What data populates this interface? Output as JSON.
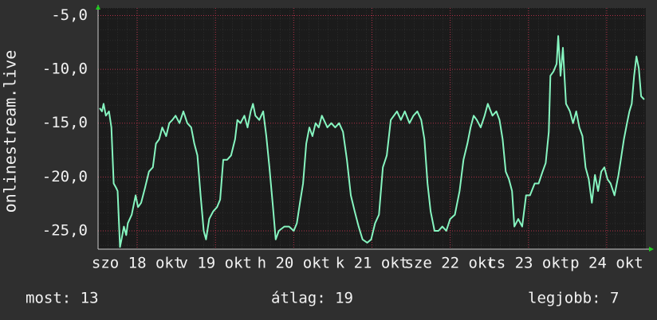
{
  "chart_data": {
    "type": "line",
    "ylabel": "onlinestream.live",
    "xlim": [
      0,
      7
    ],
    "xticks": [
      {
        "value": 0.5,
        "label": "szo 18 okt"
      },
      {
        "value": 1.5,
        "label": "v 19 okt"
      },
      {
        "value": 2.5,
        "label": "h 20 okt"
      },
      {
        "value": 3.5,
        "label": "k 21 okt"
      },
      {
        "value": 4.5,
        "label": "sze 22 okt"
      },
      {
        "value": 5.5,
        "label": "cs 23 okt"
      },
      {
        "value": 6.5,
        "label": "p 24 okt"
      }
    ],
    "ylim": [
      -26.7,
      -4.3
    ],
    "yticks": [
      {
        "value": -25,
        "label": "-25,0"
      },
      {
        "value": -20,
        "label": "-20,0"
      },
      {
        "value": -15,
        "label": "-15,0"
      },
      {
        "value": -10,
        "label": "-10,0"
      },
      {
        "value": -5,
        "label": "-5,0"
      }
    ],
    "grid": true,
    "x": [
      0.02,
      0.05,
      0.07,
      0.1,
      0.14,
      0.17,
      0.2,
      0.23,
      0.25,
      0.28,
      0.3,
      0.33,
      0.36,
      0.38,
      0.43,
      0.48,
      0.51,
      0.55,
      0.6,
      0.65,
      0.7,
      0.74,
      0.78,
      0.82,
      0.87,
      0.91,
      0.95,
      0.99,
      1.04,
      1.09,
      1.14,
      1.19,
      1.23,
      1.27,
      1.31,
      1.35,
      1.38,
      1.42,
      1.47,
      1.52,
      1.56,
      1.6,
      1.65,
      1.7,
      1.75,
      1.78,
      1.82,
      1.87,
      1.91,
      1.95,
      1.98,
      2.01,
      2.06,
      2.11,
      2.15,
      2.19,
      2.23,
      2.27,
      2.31,
      2.38,
      2.44,
      2.5,
      2.54,
      2.58,
      2.62,
      2.66,
      2.7,
      2.74,
      2.78,
      2.82,
      2.86,
      2.93,
      2.98,
      3.03,
      3.08,
      3.13,
      3.18,
      3.23,
      3.28,
      3.33,
      3.38,
      3.44,
      3.49,
      3.54,
      3.59,
      3.64,
      3.69,
      3.74,
      3.78,
      3.82,
      3.87,
      3.92,
      3.98,
      4.03,
      4.08,
      4.13,
      4.17,
      4.21,
      4.25,
      4.3,
      4.35,
      4.4,
      4.45,
      4.5,
      4.56,
      4.62,
      4.67,
      4.72,
      4.76,
      4.8,
      4.84,
      4.89,
      4.94,
      4.98,
      5.04,
      5.09,
      5.13,
      5.17,
      5.21,
      5.25,
      5.29,
      5.32,
      5.37,
      5.42,
      5.47,
      5.52,
      5.58,
      5.63,
      5.68,
      5.72,
      5.76,
      5.78,
      5.82,
      5.86,
      5.88,
      5.91,
      5.94,
      5.98,
      6.01,
      6.03,
      6.07,
      6.11,
      6.15,
      6.19,
      6.23,
      6.27,
      6.31,
      6.35,
      6.39,
      6.43,
      6.47,
      6.51,
      6.55,
      6.6,
      6.65,
      6.68,
      6.72,
      6.76,
      6.79,
      6.82,
      6.85,
      6.88,
      6.91,
      6.94,
      6.98
    ],
    "series": [
      {
        "name": "onlinestream.live",
        "color": "#86f5c0",
        "values": [
          -13.6,
          -13.9,
          -13.2,
          -14.3,
          -13.9,
          -15.4,
          -20.6,
          -21.0,
          -21.3,
          -26.5,
          -25.8,
          -24.6,
          -25.4,
          -24.3,
          -23.5,
          -21.7,
          -22.8,
          -22.4,
          -21.0,
          -19.5,
          -19.1,
          -16.9,
          -16.5,
          -15.4,
          -16.2,
          -15.0,
          -14.7,
          -14.3,
          -15.0,
          -13.9,
          -15.0,
          -15.4,
          -16.9,
          -18.0,
          -21.7,
          -25.0,
          -25.8,
          -23.9,
          -23.2,
          -22.8,
          -22.1,
          -18.4,
          -18.4,
          -18.0,
          -16.5,
          -14.7,
          -15.0,
          -14.3,
          -15.4,
          -13.9,
          -13.2,
          -14.3,
          -14.7,
          -13.9,
          -16.2,
          -19.1,
          -22.4,
          -25.8,
          -25.0,
          -24.6,
          -24.6,
          -25.0,
          -24.3,
          -22.4,
          -20.6,
          -16.9,
          -15.4,
          -16.2,
          -15.0,
          -15.4,
          -14.3,
          -15.4,
          -15.0,
          -15.4,
          -15.0,
          -15.8,
          -18.4,
          -21.7,
          -23.2,
          -24.6,
          -25.8,
          -26.1,
          -25.8,
          -24.3,
          -23.5,
          -19.1,
          -18.0,
          -14.7,
          -14.3,
          -13.9,
          -14.7,
          -13.9,
          -15.0,
          -14.3,
          -13.9,
          -14.7,
          -16.5,
          -20.6,
          -23.2,
          -25.0,
          -25.0,
          -24.6,
          -25.0,
          -23.9,
          -23.5,
          -21.3,
          -18.4,
          -16.9,
          -15.4,
          -14.3,
          -14.7,
          -15.4,
          -14.3,
          -13.2,
          -14.3,
          -13.9,
          -14.7,
          -16.5,
          -19.5,
          -20.2,
          -21.3,
          -24.6,
          -23.9,
          -24.6,
          -21.7,
          -21.7,
          -20.6,
          -20.6,
          -19.5,
          -18.7,
          -15.8,
          -10.6,
          -10.2,
          -9.5,
          -6.9,
          -10.6,
          -8.0,
          -13.2,
          -13.6,
          -13.9,
          -15.0,
          -13.9,
          -15.4,
          -16.2,
          -19.1,
          -20.2,
          -22.4,
          -19.8,
          -21.3,
          -19.5,
          -19.1,
          -20.2,
          -20.6,
          -21.7,
          -19.8,
          -18.4,
          -16.5,
          -15.0,
          -13.9,
          -13.2,
          -10.6,
          -8.8,
          -9.9,
          -12.5,
          -12.8
        ]
      }
    ]
  },
  "footer": [
    "most: 13",
    "átlag: 19",
    "legjobb: 7"
  ]
}
